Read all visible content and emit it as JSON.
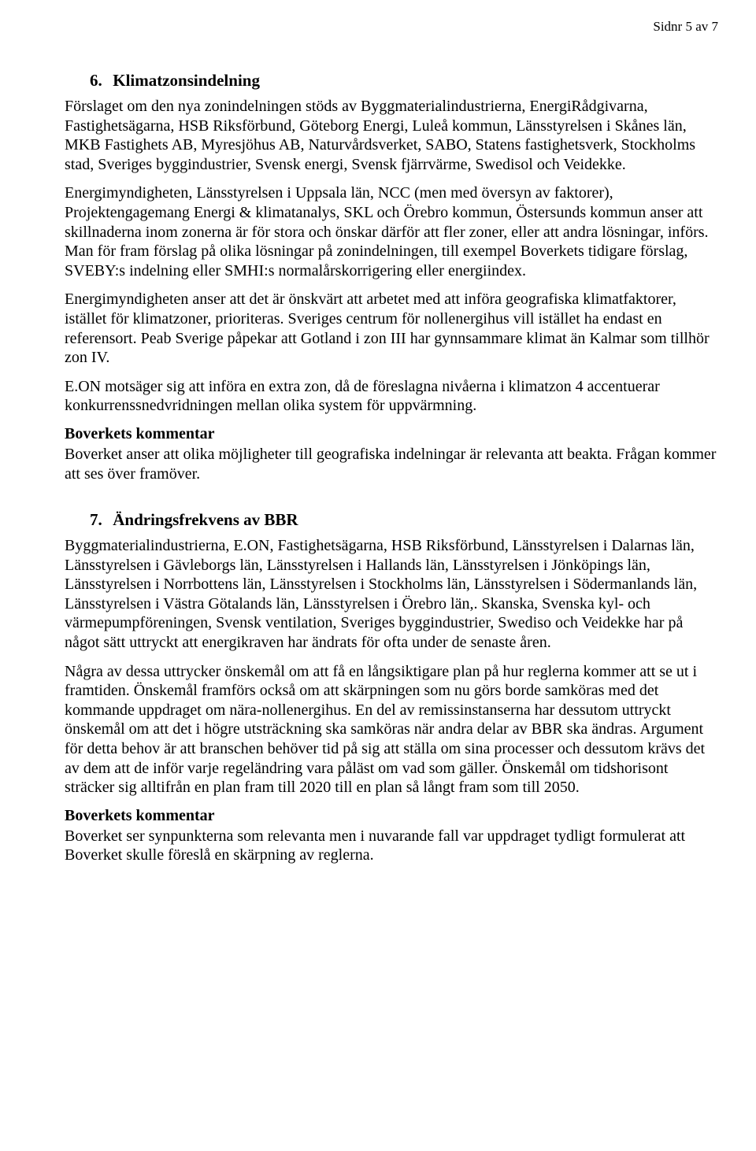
{
  "pageNumber": "Sidnr 5 av 7",
  "section6": {
    "number": "6.",
    "title": "Klimatzonsindelning",
    "p1": "Förslaget om den nya zonindelningen stöds av Byggmaterialindustrierna, EnergiRådgivarna, Fastighetsägarna, HSB Riksförbund, Göteborg Energi, Luleå kommun, Länsstyrelsen i Skånes län, MKB Fastighets AB, Myresjöhus AB, Naturvårdsverket, SABO, Statens fastighetsverk, Stockholms stad, Sveriges byggindustrier, Svensk energi, Svensk fjärrvärme, Swedisol och Veidekke.",
    "p2": "Energimyndigheten, Länsstyrelsen i Uppsala län, NCC (men med översyn av faktorer), Projektengagemang Energi & klimatanalys, SKL och Örebro kommun, Östersunds kommun anser att skillnaderna inom zonerna är för stora och önskar därför att fler zoner, eller att andra lösningar, införs. Man för fram förslag på olika lösningar på zonindelningen, till exempel Boverkets tidigare förslag, SVEBY:s indelning eller SMHI:s normalårskorrigering eller energiindex.",
    "p3": "Energimyndigheten anser att det är önskvärt att arbetet med att införa geografiska klimatfaktorer, istället för klimatzoner, prioriteras. Sveriges centrum för nollenergihus vill istället ha endast en referensort. Peab Sverige påpekar att Gotland i zon III har gynnsammare klimat än Kalmar som tillhör zon IV.",
    "p4": "E.ON motsäger sig att införa en extra zon, då de föreslagna nivåerna i klimatzon 4 accentuerar konkurrenssnedvridningen mellan olika system för uppvärmning.",
    "commentHeading": "Boverkets kommentar",
    "commentBody": "Boverket anser att olika möjligheter till geografiska indelningar är relevanta att beakta. Frågan kommer att ses över framöver."
  },
  "section7": {
    "number": "7.",
    "title": "Ändringsfrekvens av BBR",
    "p1": "Byggmaterialindustrierna, E.ON, Fastighetsägarna, HSB Riksförbund, Länsstyrelsen i Dalarnas län, Länsstyrelsen i Gävleborgs län, Länsstyrelsen i Hallands län, Länsstyrelsen i Jönköpings län, Länsstyrelsen i Norrbottens län, Länsstyrelsen i Stockholms län, Länsstyrelsen i Södermanlands län, Länsstyrelsen i Västra Götalands län, Länsstyrelsen i Örebro län,. Skanska, Svenska kyl- och värmepumpföreningen, Svensk ventilation, Sveriges byggindustrier, Swediso och Veidekke har på något sätt uttryckt att energikraven har ändrats för ofta under de senaste åren.",
    "p2": "Några av dessa uttrycker önskemål om att få en långsiktigare plan på hur reglerna kommer att se ut i framtiden. Önskemål framförs också om att skärpningen som nu görs borde samköras med det kommande uppdraget om nära-nollenergihus. En del av remissinstanserna har dessutom uttryckt önskemål om att det i högre utsträckning ska samköras när andra delar av BBR ska ändras. Argument för detta behov är att branschen behöver tid på sig att ställa om sina processer och dessutom krävs det av dem att de inför varje regeländring vara påläst om vad som gäller. Önskemål om tidshorisont sträcker sig alltifrån en plan fram till 2020 till en plan så långt fram som till 2050.",
    "commentHeading": "Boverkets kommentar",
    "commentBody": "Boverket ser synpunkterna som relevanta men i nuvarande fall var uppdraget tydligt formulerat att Boverket skulle föreslå en skärpning av reglerna."
  }
}
